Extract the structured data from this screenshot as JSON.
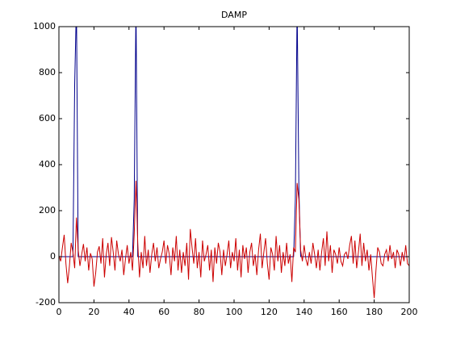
{
  "chart_data": {
    "type": "line",
    "title": "DAMP",
    "x": [
      0,
      1,
      2,
      3,
      4,
      5,
      6,
      7,
      8,
      9,
      10,
      11,
      12,
      13,
      14,
      15,
      16,
      17,
      18,
      19,
      20,
      21,
      22,
      23,
      24,
      25,
      26,
      27,
      28,
      29,
      30,
      31,
      32,
      33,
      34,
      35,
      36,
      37,
      38,
      39,
      40,
      41,
      42,
      43,
      44,
      45,
      46,
      47,
      48,
      49,
      50,
      51,
      52,
      53,
      54,
      55,
      56,
      57,
      58,
      59,
      60,
      61,
      62,
      63,
      64,
      65,
      66,
      67,
      68,
      69,
      70,
      71,
      72,
      73,
      74,
      75,
      76,
      77,
      78,
      79,
      80,
      81,
      82,
      83,
      84,
      85,
      86,
      87,
      88,
      89,
      90,
      91,
      92,
      93,
      94,
      95,
      96,
      97,
      98,
      99,
      100,
      101,
      102,
      103,
      104,
      105,
      106,
      107,
      108,
      109,
      110,
      111,
      112,
      113,
      114,
      115,
      116,
      117,
      118,
      119,
      120,
      121,
      122,
      123,
      124,
      125,
      126,
      127,
      128,
      129,
      130,
      131,
      132,
      133,
      134,
      135,
      136,
      137,
      138,
      139,
      140,
      141,
      142,
      143,
      144,
      145,
      146,
      147,
      148,
      149,
      150,
      151,
      152,
      153,
      154,
      155,
      156,
      157,
      158,
      159,
      160,
      161,
      162,
      163,
      164,
      165,
      166,
      167,
      168,
      169,
      170,
      171,
      172,
      173,
      174,
      175,
      176,
      177,
      178,
      179,
      180,
      181,
      182,
      183,
      184,
      185,
      186,
      187,
      188,
      189,
      190,
      191,
      192,
      193,
      194,
      195,
      196,
      197,
      198,
      199,
      200
    ],
    "series": [
      {
        "color": "#00008b",
        "values": [
          0,
          0,
          0,
          0,
          0,
          0,
          0,
          0,
          0,
          750,
          1100,
          0,
          0,
          0,
          0,
          0,
          0,
          0,
          0,
          0,
          0,
          0,
          0,
          0,
          0,
          0,
          0,
          0,
          0,
          0,
          0,
          0,
          0,
          0,
          0,
          0,
          0,
          0,
          0,
          0,
          0,
          0,
          0,
          250,
          1100,
          0,
          0,
          0,
          0,
          0,
          0,
          0,
          0,
          0,
          0,
          0,
          0,
          0,
          0,
          0,
          0,
          0,
          0,
          0,
          0,
          0,
          0,
          0,
          0,
          0,
          0,
          0,
          0,
          0,
          0,
          0,
          0,
          0,
          0,
          0,
          0,
          0,
          0,
          0,
          0,
          0,
          0,
          0,
          0,
          0,
          0,
          0,
          0,
          0,
          0,
          0,
          0,
          0,
          0,
          0,
          0,
          0,
          0,
          0,
          0,
          0,
          0,
          0,
          0,
          0,
          0,
          0,
          0,
          0,
          0,
          0,
          0,
          0,
          0,
          0,
          0,
          0,
          0,
          0,
          0,
          0,
          0,
          0,
          0,
          0,
          0,
          0,
          0,
          0,
          0,
          250,
          1100,
          300,
          0,
          0,
          0,
          0,
          0,
          0,
          0,
          0,
          0,
          0,
          0,
          0,
          0,
          0,
          0,
          0,
          0,
          0,
          0,
          0,
          0,
          0,
          0,
          0,
          0,
          0,
          0,
          0,
          0,
          0,
          0,
          0,
          0,
          0,
          0,
          0,
          0,
          0,
          0,
          0,
          0,
          0,
          0,
          0,
          0,
          0,
          0,
          0,
          0,
          0,
          0,
          0,
          0,
          0,
          0,
          0,
          0,
          0,
          0,
          0,
          0,
          0,
          0
        ]
      },
      {
        "color": "#cc0000",
        "values": [
          5,
          -20,
          40,
          95,
          -30,
          -115,
          -40,
          60,
          20,
          -50,
          170,
          30,
          -40,
          10,
          55,
          -20,
          40,
          -60,
          15,
          -10,
          -130,
          -70,
          20,
          45,
          -30,
          80,
          -90,
          10,
          60,
          -40,
          85,
          20,
          -60,
          70,
          10,
          -20,
          30,
          -80,
          -10,
          50,
          -30,
          20,
          -60,
          100,
          330,
          60,
          -90,
          20,
          -50,
          90,
          -40,
          30,
          -70,
          10,
          60,
          -20,
          40,
          -50,
          -10,
          20,
          70,
          -30,
          50,
          10,
          -80,
          40,
          -20,
          90,
          -60,
          30,
          -70,
          20,
          -40,
          60,
          -100,
          120,
          40,
          -30,
          80,
          -50,
          20,
          -90,
          70,
          -20,
          10,
          50,
          -60,
          30,
          -110,
          40,
          -30,
          60,
          20,
          -80,
          30,
          -40,
          10,
          70,
          -50,
          20,
          -20,
          80,
          -60,
          30,
          -90,
          50,
          -10,
          40,
          -70,
          20,
          60,
          -40,
          10,
          -80,
          30,
          100,
          -50,
          20,
          80,
          -30,
          -100,
          40,
          10,
          -60,
          90,
          -20,
          50,
          -70,
          20,
          -40,
          60,
          -30,
          10,
          -110,
          40,
          20,
          320,
          250,
          30,
          -20,
          50,
          -10,
          -40,
          20,
          -30,
          60,
          10,
          -50,
          30,
          -60,
          20,
          80,
          -40,
          110,
          -20,
          50,
          -70,
          30,
          10,
          -30,
          40,
          -20,
          -40,
          10,
          20,
          -10,
          50,
          90,
          -30,
          70,
          -50,
          20,
          100,
          -40,
          60,
          -20,
          30,
          -60,
          10,
          -90,
          -180,
          -60,
          40,
          20,
          -30,
          -40,
          10,
          30,
          -20,
          50,
          -10,
          20,
          -50,
          30,
          10,
          -40,
          20,
          -20,
          50,
          -30,
          -40
        ]
      }
    ],
    "xlim": [
      0,
      200
    ],
    "xticks": [
      0,
      20,
      40,
      60,
      80,
      100,
      120,
      140,
      160,
      180,
      200
    ],
    "ylim": [
      -200,
      1000
    ],
    "yticks": [
      -200,
      0,
      200,
      400,
      600,
      800,
      1000
    ]
  }
}
